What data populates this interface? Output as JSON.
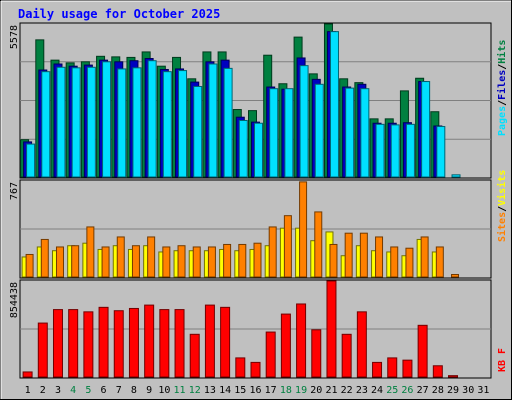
{
  "chart_data": [
    {
      "type": "bar",
      "title": "Daily usage for October 2025",
      "ymax_label": "5578",
      "ylim": [
        0,
        5578
      ],
      "legend": {
        "pages": "Pages",
        "files": "Files",
        "hits": "Hits",
        "separator": "/"
      },
      "categories": [
        "1",
        "2",
        "3",
        "4",
        "5",
        "6",
        "7",
        "8",
        "9",
        "10",
        "11",
        "12",
        "13",
        "14",
        "15",
        "16",
        "17",
        "18",
        "19",
        "20",
        "21",
        "22",
        "23",
        "24",
        "25",
        "26",
        "27",
        "28",
        "29",
        "30",
        "31"
      ],
      "weekend_days": [
        4,
        5,
        11,
        12,
        18,
        19,
        25,
        26
      ],
      "series": [
        {
          "name": "Hits",
          "color": "#008040",
          "values": [
            1360,
            5000,
            4260,
            4160,
            4200,
            4400,
            4380,
            4360,
            4560,
            4040,
            4360,
            3580,
            4560,
            4560,
            2460,
            2420,
            4440,
            3400,
            5100,
            3760,
            5578,
            3580,
            3440,
            2120,
            2120,
            3140,
            3600,
            2380,
            0,
            0,
            0
          ]
        },
        {
          "name": "Files",
          "color": "#0000c0",
          "values": [
            1280,
            3900,
            4120,
            4040,
            4080,
            4260,
            4200,
            4240,
            4320,
            3920,
            3940,
            3460,
            4200,
            4260,
            2180,
            2000,
            3280,
            3200,
            4340,
            3560,
            5300,
            3280,
            3380,
            1960,
            1960,
            1980,
            3480,
            1860,
            0,
            0,
            0
          ]
        },
        {
          "name": "Pages",
          "color": "#00e0ff",
          "values": [
            1200,
            3840,
            4000,
            3980,
            4000,
            4200,
            3940,
            3980,
            4240,
            3840,
            3880,
            3300,
            4120,
            3960,
            2060,
            1960,
            3220,
            3220,
            4060,
            3380,
            5300,
            3240,
            3220,
            1920,
            1900,
            1920,
            3480,
            1840,
            80,
            0,
            0
          ]
        }
      ]
    },
    {
      "type": "bar",
      "ymax_label": "767",
      "ylim": [
        0,
        767
      ],
      "legend": {
        "sites": "Sites",
        "visits": "Visits",
        "separator": "/"
      },
      "categories": [
        "1",
        "2",
        "3",
        "4",
        "5",
        "6",
        "7",
        "8",
        "9",
        "10",
        "11",
        "12",
        "13",
        "14",
        "15",
        "16",
        "17",
        "18",
        "19",
        "20",
        "21",
        "22",
        "23",
        "24",
        "25",
        "26",
        "27",
        "28",
        "29",
        "30",
        "31"
      ],
      "series": [
        {
          "name": "Visits",
          "color": "#ffff00",
          "values": [
            160,
            240,
            210,
            250,
            270,
            220,
            250,
            220,
            250,
            200,
            210,
            210,
            210,
            220,
            210,
            220,
            250,
            390,
            390,
            290,
            360,
            170,
            250,
            210,
            200,
            170,
            300,
            200,
            0,
            0,
            0
          ]
        },
        {
          "name": "Sites",
          "color": "#ff8000",
          "values": [
            180,
            300,
            240,
            250,
            400,
            240,
            320,
            250,
            320,
            240,
            250,
            240,
            240,
            260,
            260,
            270,
            400,
            490,
            760,
            520,
            260,
            350,
            350,
            320,
            240,
            230,
            320,
            240,
            20,
            0,
            0
          ]
        }
      ]
    },
    {
      "type": "bar",
      "ymax_label": "854438",
      "ylim": [
        0,
        854438
      ],
      "legend": {
        "kbf": "KB F"
      },
      "categories": [
        "1",
        "2",
        "3",
        "4",
        "5",
        "6",
        "7",
        "8",
        "9",
        "10",
        "11",
        "12",
        "13",
        "14",
        "15",
        "16",
        "17",
        "18",
        "19",
        "20",
        "21",
        "22",
        "23",
        "24",
        "25",
        "26",
        "27",
        "28",
        "29",
        "30",
        "31"
      ],
      "series": [
        {
          "name": "KB F",
          "color": "#ff0000",
          "values": [
            45000,
            480000,
            600000,
            600000,
            580000,
            620000,
            590000,
            610000,
            640000,
            600000,
            600000,
            380000,
            640000,
            620000,
            170000,
            130000,
            400000,
            560000,
            650000,
            420000,
            854438,
            380000,
            580000,
            130000,
            170000,
            150000,
            460000,
            100000,
            12000,
            0,
            0
          ]
        }
      ]
    }
  ]
}
